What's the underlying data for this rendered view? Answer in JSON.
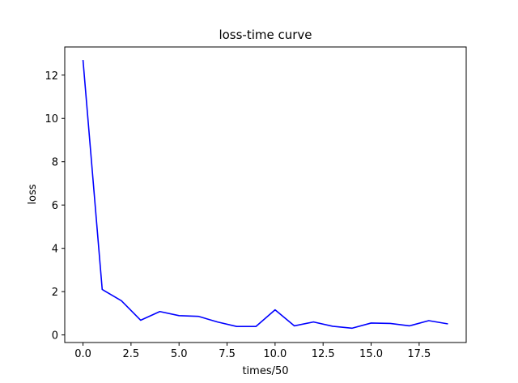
{
  "chart_data": {
    "type": "line",
    "title": "loss-time curve",
    "xlabel": "times/50",
    "ylabel": "loss",
    "xlim": [
      -0.95,
      19.95
    ],
    "ylim": [
      -0.35,
      13.3
    ],
    "x_ticks": [
      0.0,
      2.5,
      5.0,
      7.5,
      10.0,
      12.5,
      15.0,
      17.5
    ],
    "x_tick_labels": [
      "0.0",
      "2.5",
      "5.0",
      "7.5",
      "10.0",
      "12.5",
      "15.0",
      "17.5"
    ],
    "y_ticks": [
      0,
      2,
      4,
      6,
      8,
      10,
      12
    ],
    "y_tick_labels": [
      "0",
      "2",
      "4",
      "6",
      "8",
      "10",
      "12"
    ],
    "grid": false,
    "legend": "none",
    "series": [
      {
        "color": "#0000ff",
        "x": [
          0,
          1,
          2,
          3,
          4,
          5,
          6,
          7,
          8,
          9,
          10,
          11,
          12,
          13,
          14,
          15,
          16,
          17,
          18,
          19
        ],
        "y": [
          12.7,
          2.1,
          1.58,
          0.68,
          1.08,
          0.89,
          0.86,
          0.6,
          0.39,
          0.39,
          1.16,
          0.42,
          0.6,
          0.4,
          0.31,
          0.55,
          0.53,
          0.42,
          0.66,
          0.51
        ]
      }
    ]
  }
}
